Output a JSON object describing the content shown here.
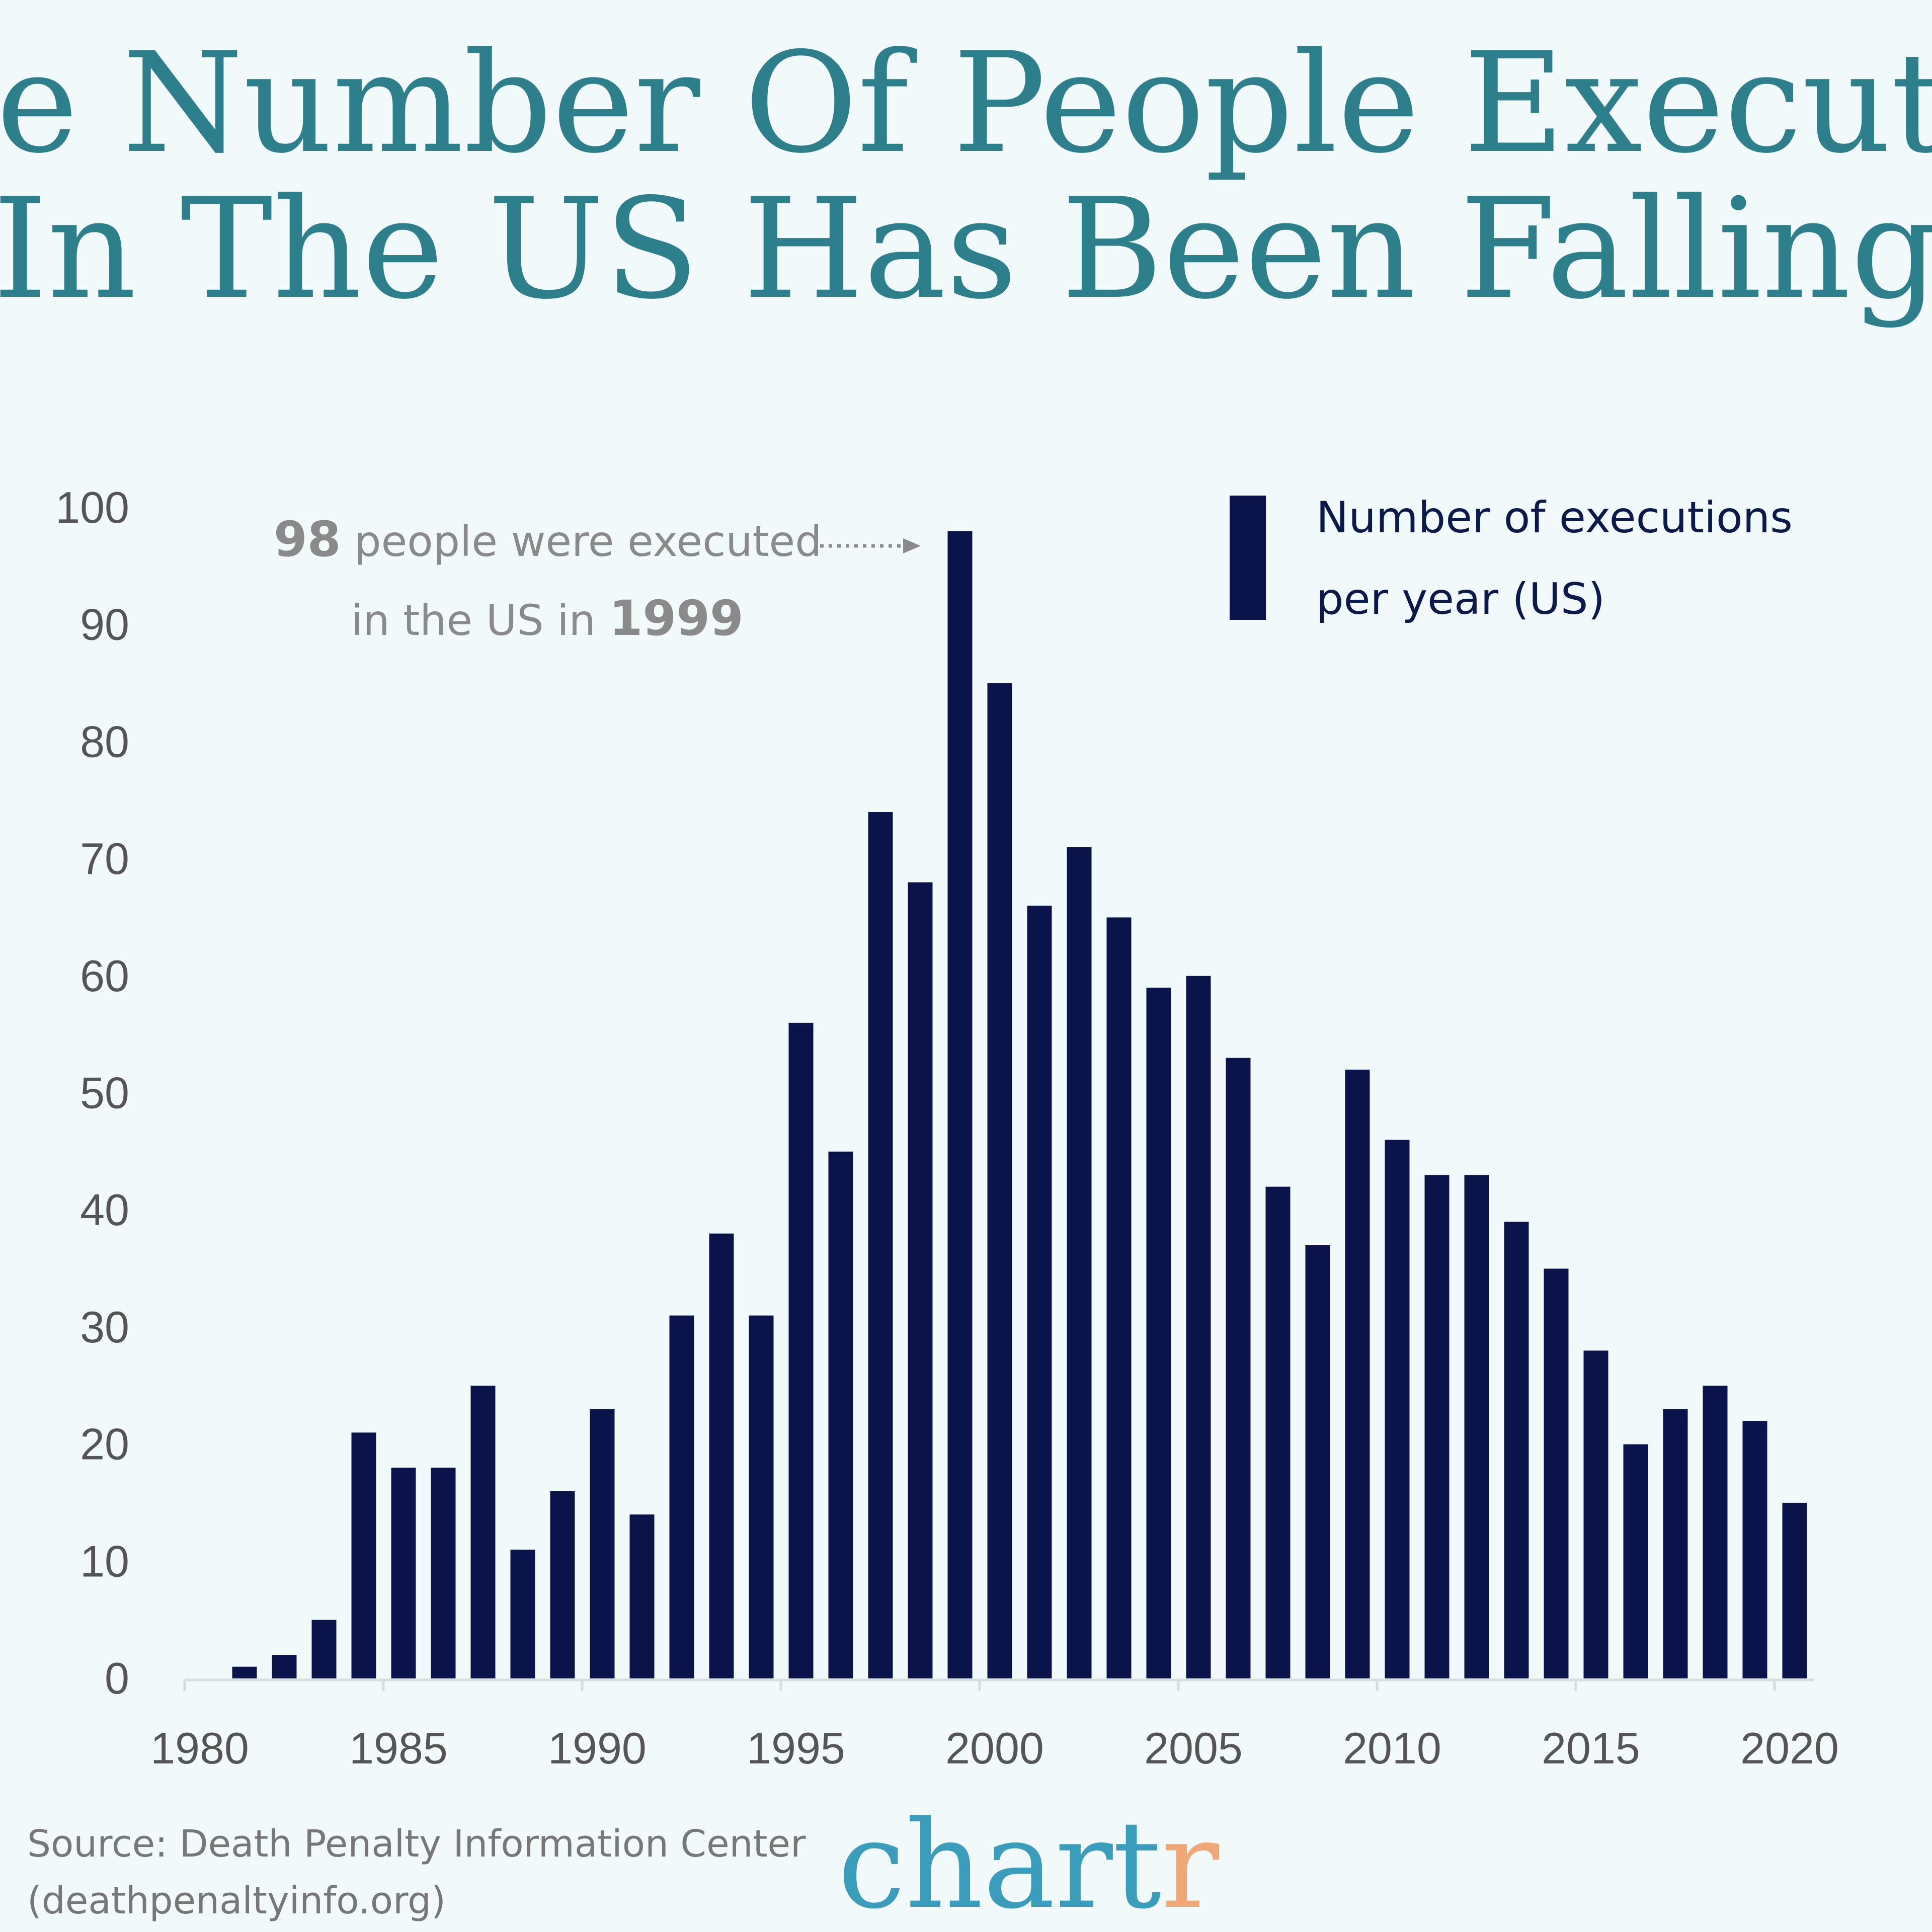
{
  "title_lines": [
    "The Number Of People Executed",
    "In The US Has Been Falling"
  ],
  "annotation": {
    "value": "98",
    "line1_rest": "people were executed",
    "line2_pre": "in the US in",
    "year": "1999"
  },
  "source_lines": [
    "Source: Death Penalty Information Center",
    "(deathpenaltyinfo.org)"
  ],
  "logo": {
    "main": "chart",
    "accent": "r",
    "main_color": "#3a9dbb",
    "accent_color": "#f0a878"
  },
  "colors": {
    "bar": "#0a134a",
    "title": "#2e7f8c",
    "background": "#f1f9fb"
  },
  "chart_data": {
    "type": "bar",
    "title": "The Number Of People Executed In The US Has Been Falling",
    "legend": {
      "label_lines": [
        "Number of executions",
        "per year (US)"
      ],
      "placement": "top-right"
    },
    "series": [
      {
        "name": "Number of executions per year (US)",
        "x": [
          1981,
          1982,
          1983,
          1984,
          1985,
          1986,
          1987,
          1988,
          1989,
          1990,
          1991,
          1992,
          1993,
          1994,
          1995,
          1996,
          1997,
          1998,
          1999,
          2000,
          2001,
          2002,
          2003,
          2004,
          2005,
          2006,
          2007,
          2008,
          2009,
          2010,
          2011,
          2012,
          2013,
          2014,
          2015,
          2016,
          2017,
          2018,
          2019,
          2020
        ],
        "values": [
          1,
          2,
          5,
          21,
          18,
          18,
          25,
          11,
          16,
          23,
          14,
          31,
          38,
          31,
          56,
          45,
          74,
          68,
          98,
          85,
          66,
          71,
          65,
          59,
          60,
          53,
          42,
          37,
          52,
          46,
          43,
          43,
          39,
          35,
          28,
          20,
          23,
          25,
          22,
          15
        ]
      }
    ],
    "xlim": [
      1980,
      2021
    ],
    "ylim": [
      0,
      100
    ],
    "x_ticks": [
      "1980",
      "1985",
      "1990",
      "1995",
      "2000",
      "2005",
      "2010",
      "2015",
      "2020"
    ],
    "y_ticks": [
      "0",
      "10",
      "20",
      "30",
      "40",
      "50",
      "60",
      "70",
      "80",
      "90",
      "100"
    ],
    "grid": false
  }
}
